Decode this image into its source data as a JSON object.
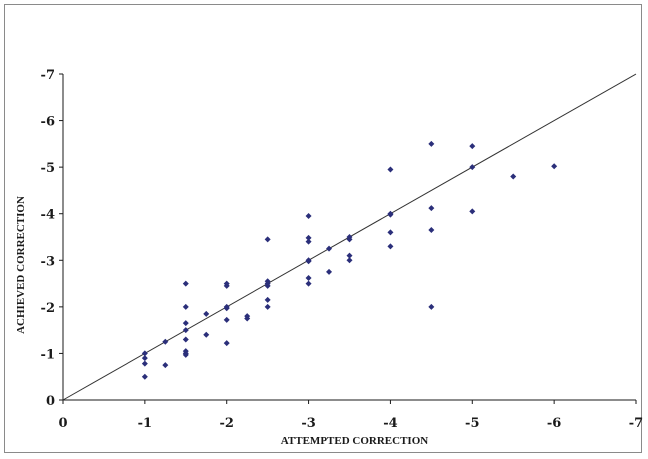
{
  "chart_data": {
    "type": "scatter",
    "xlabel": "ATTEMPTED CORRECTION",
    "ylabel": "ACHIEVED CORRECTION",
    "xlim": [
      0,
      -7
    ],
    "ylim": [
      0,
      -7
    ],
    "x_ticks": [
      "0",
      "-1",
      "-2",
      "-3",
      "-4",
      "-5",
      "-6",
      "-7"
    ],
    "y_ticks": [
      "0",
      "-1",
      "-2",
      "-3",
      "-4",
      "-5",
      "-6",
      "-7"
    ],
    "grid": false,
    "legend": "none",
    "reference_line": {
      "from": [
        0,
        0
      ],
      "to": [
        -7,
        -7
      ]
    },
    "marker_color": "#2b2f7a",
    "line_color": "#333333",
    "points": [
      {
        "x": -1,
        "y": -1.0
      },
      {
        "x": -1,
        "y": -0.9
      },
      {
        "x": -1,
        "y": -0.78
      },
      {
        "x": -1,
        "y": -0.5
      },
      {
        "x": -1.25,
        "y": -1.25
      },
      {
        "x": -1.25,
        "y": -0.75
      },
      {
        "x": -1.5,
        "y": -2.5
      },
      {
        "x": -1.5,
        "y": -2.0
      },
      {
        "x": -1.5,
        "y": -1.65
      },
      {
        "x": -1.5,
        "y": -1.5
      },
      {
        "x": -1.5,
        "y": -1.3
      },
      {
        "x": -1.5,
        "y": -1.05
      },
      {
        "x": -1.5,
        "y": -1.0
      },
      {
        "x": -1.5,
        "y": -0.97
      },
      {
        "x": -1.75,
        "y": -1.85
      },
      {
        "x": -1.75,
        "y": -1.4
      },
      {
        "x": -2,
        "y": -2.5
      },
      {
        "x": -2,
        "y": -2.45
      },
      {
        "x": -2,
        "y": -2.0
      },
      {
        "x": -2,
        "y": -1.97
      },
      {
        "x": -2,
        "y": -1.72
      },
      {
        "x": -2,
        "y": -1.22
      },
      {
        "x": -2.25,
        "y": -1.8
      },
      {
        "x": -2.25,
        "y": -1.75
      },
      {
        "x": -2.5,
        "y": -3.45
      },
      {
        "x": -2.5,
        "y": -2.55
      },
      {
        "x": -2.5,
        "y": -2.5
      },
      {
        "x": -2.5,
        "y": -2.45
      },
      {
        "x": -2.5,
        "y": -2.15
      },
      {
        "x": -2.5,
        "y": -2.0
      },
      {
        "x": -3,
        "y": -3.95
      },
      {
        "x": -3,
        "y": -3.48
      },
      {
        "x": -3,
        "y": -3.4
      },
      {
        "x": -3,
        "y": -3.0
      },
      {
        "x": -3,
        "y": -2.98
      },
      {
        "x": -3,
        "y": -2.62
      },
      {
        "x": -3,
        "y": -2.5
      },
      {
        "x": -3.25,
        "y": -3.25
      },
      {
        "x": -3.25,
        "y": -2.75
      },
      {
        "x": -3.5,
        "y": -3.5
      },
      {
        "x": -3.5,
        "y": -3.45
      },
      {
        "x": -3.5,
        "y": -3.1
      },
      {
        "x": -3.5,
        "y": -3.0
      },
      {
        "x": -4,
        "y": -4.95
      },
      {
        "x": -4,
        "y": -4.0
      },
      {
        "x": -4,
        "y": -3.98
      },
      {
        "x": -4,
        "y": -3.6
      },
      {
        "x": -4,
        "y": -3.3
      },
      {
        "x": -4.5,
        "y": -5.5
      },
      {
        "x": -4.5,
        "y": -4.12
      },
      {
        "x": -4.5,
        "y": -3.65
      },
      {
        "x": -4.5,
        "y": -2.0
      },
      {
        "x": -5,
        "y": -5.45
      },
      {
        "x": -5,
        "y": -5.0
      },
      {
        "x": -5,
        "y": -4.05
      },
      {
        "x": -5.5,
        "y": -4.8
      },
      {
        "x": -6,
        "y": -5.02
      }
    ]
  }
}
